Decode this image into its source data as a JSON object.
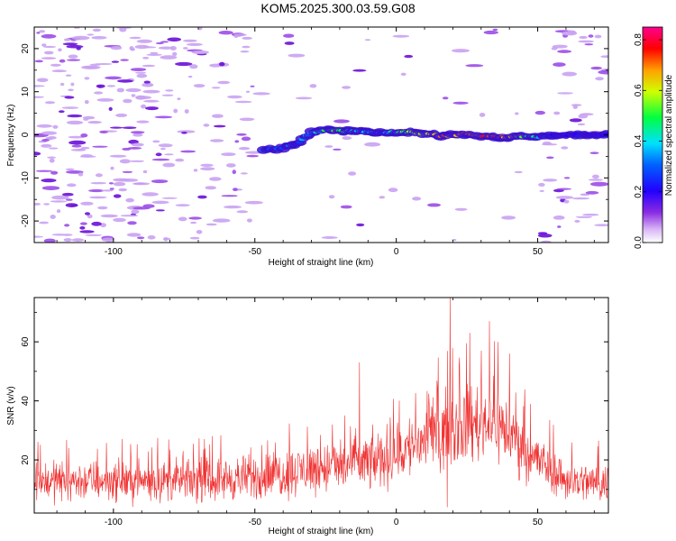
{
  "title": "KOM5.2025.300.03.59.G08",
  "chart_data": [
    {
      "type": "heatmap",
      "xlabel": "Height of straight line (km)",
      "ylabel": "Frequency (Hz)",
      "xlim": [
        -128,
        75
      ],
      "ylim": [
        -25,
        25
      ],
      "xticks": [
        -100,
        -50,
        0,
        50
      ],
      "yticks": [
        -20,
        -10,
        0,
        10,
        20
      ],
      "colorbar": {
        "label": "Normalized spectral amplitude",
        "range": [
          0.0,
          0.85
        ],
        "ticks": [
          "0.0",
          "0.2",
          "0.4",
          "0.6",
          "0.8"
        ],
        "tick_values": [
          0.0,
          0.2,
          0.4,
          0.6,
          0.8
        ],
        "colors": [
          "#ffffff",
          "#c8a0f0",
          "#6600cc",
          "#0000ff",
          "#00ffff",
          "#00ff00",
          "#ffff00",
          "#ff0000",
          "#ff0080"
        ]
      },
      "trace": {
        "points": [
          [
            -47,
            -3.5
          ],
          [
            -40,
            -3
          ],
          [
            -35,
            -2
          ],
          [
            -30,
            0.5
          ],
          [
            -25,
            1.2
          ],
          [
            -20,
            1.0
          ],
          [
            -15,
            0.8
          ],
          [
            -10,
            0.6
          ],
          [
            -5,
            0.4
          ],
          [
            0,
            0.6
          ],
          [
            5,
            0.6
          ],
          [
            10,
            0.2
          ],
          [
            15,
            -0.2
          ],
          [
            20,
            -0.1
          ],
          [
            25,
            0.2
          ],
          [
            30,
            -0.3
          ],
          [
            35,
            -0.6
          ],
          [
            40,
            -0.5
          ],
          [
            45,
            -0.4
          ],
          [
            50,
            -0.5
          ],
          [
            55,
            -0.2
          ],
          [
            60,
            0
          ],
          [
            65,
            0
          ],
          [
            70,
            -0.1
          ],
          [
            75,
            0
          ]
        ],
        "amplitudes": [
          0.25,
          0.3,
          0.28,
          0.35,
          0.45,
          0.55,
          0.4,
          0.38,
          0.3,
          0.45,
          0.55,
          0.6,
          0.7,
          0.65,
          0.68,
          0.72,
          0.75,
          0.62,
          0.52,
          0.4,
          0.2,
          0.2,
          0.18,
          0.18,
          0.16
        ]
      }
    },
    {
      "type": "line",
      "xlabel": "Height of straight line (km)",
      "ylabel": "SNR (v/v)",
      "xlim": [
        -128,
        75
      ],
      "ylim": [
        2,
        75
      ],
      "xticks": [
        -100,
        -50,
        0,
        50
      ],
      "yticks": [
        20,
        40,
        60
      ],
      "color": "#f03030",
      "series": [
        {
          "name": "SNR",
          "envelope": {
            "x": [
              -128,
              -100,
              -70,
              -50,
              -30,
              -10,
              0,
              10,
              20,
              30,
              35,
              40,
              50,
              60,
              75
            ],
            "mean": [
              13,
              13,
              13,
              14,
              17,
              19,
              22,
              27,
              31,
              33,
              33,
              29,
              20,
              13,
              12
            ],
            "spread": [
              7,
              7,
              7,
              8,
              9,
              10,
              11,
              12,
              13,
              14,
              14,
              12,
              9,
              7,
              7
            ]
          },
          "peaks": [
            {
              "x": 19,
              "y": 75
            },
            {
              "x": 33,
              "y": 67
            },
            {
              "x": 26,
              "y": 63
            },
            {
              "x": 36,
              "y": 60
            },
            {
              "x": 40,
              "y": 56
            },
            {
              "x": -13,
              "y": 53
            },
            {
              "x": 18,
              "y": 4
            }
          ]
        }
      ]
    }
  ]
}
